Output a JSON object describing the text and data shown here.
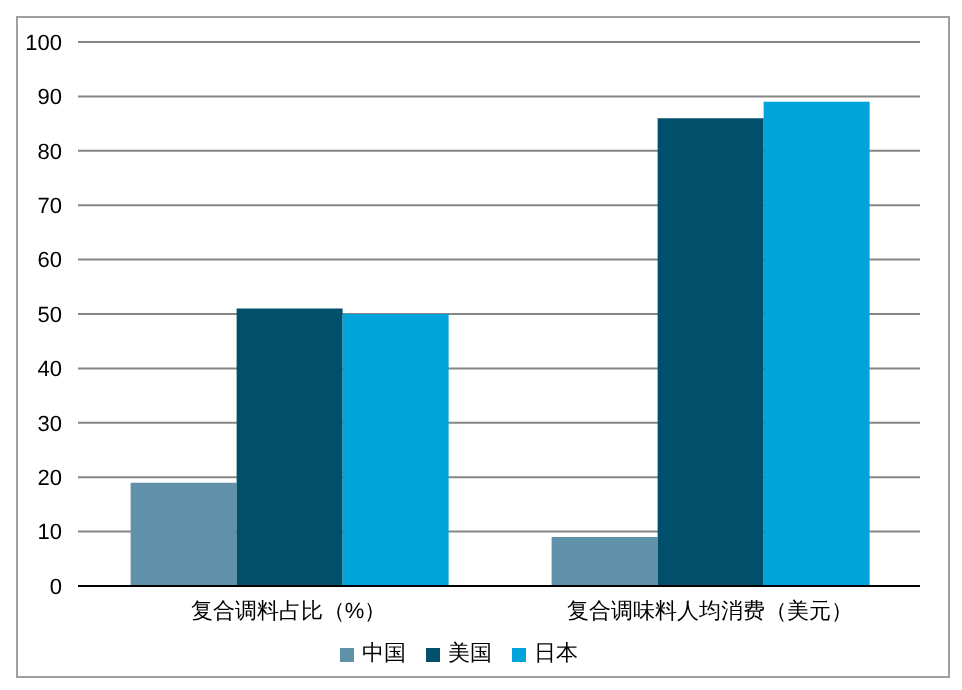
{
  "chart_data": {
    "type": "bar",
    "categories": [
      "复合调料占比（%）",
      "复合调味料人均消费（美元）"
    ],
    "series": [
      {
        "name": "中国",
        "color": "#5f91a8",
        "values": [
          19,
          9
        ]
      },
      {
        "name": "美国",
        "color": "#00506b",
        "values": [
          51,
          86
        ]
      },
      {
        "name": "日本",
        "color": "#00a3da",
        "values": [
          50,
          89
        ]
      }
    ],
    "ylim": [
      0,
      100
    ],
    "yticks": [
      0,
      10,
      20,
      30,
      40,
      50,
      60,
      70,
      80,
      90,
      100
    ],
    "grid": "y",
    "legend": "bottom"
  }
}
